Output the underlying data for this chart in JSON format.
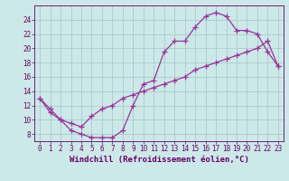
{
  "xlabel": "Windchill (Refroidissement éolien,°C)",
  "bg_color": "#cce8e8",
  "grid_color": "#aacccc",
  "line_color": "#993399",
  "curve1_x": [
    0,
    1,
    2,
    3,
    4,
    5,
    6,
    7,
    8,
    9,
    10,
    11,
    12,
    13,
    14,
    15,
    16,
    17,
    18,
    19,
    20,
    21,
    22,
    23
  ],
  "curve1_y": [
    13.0,
    11.5,
    10.0,
    8.5,
    8.0,
    7.5,
    7.5,
    7.5,
    8.5,
    12.0,
    15.0,
    15.5,
    19.5,
    21.0,
    21.0,
    23.0,
    24.5,
    25.0,
    24.5,
    22.5,
    22.5,
    22.0,
    19.5,
    17.5
  ],
  "curve2_x": [
    0,
    1,
    2,
    3,
    4,
    5,
    6,
    7,
    8,
    9,
    10,
    11,
    12,
    13,
    14,
    15,
    16,
    17,
    18,
    19,
    20,
    21,
    22,
    23
  ],
  "curve2_y": [
    13.0,
    11.0,
    10.0,
    9.5,
    9.0,
    10.5,
    11.5,
    12.0,
    13.0,
    13.5,
    14.0,
    14.5,
    15.0,
    15.5,
    16.0,
    17.0,
    17.5,
    18.0,
    18.5,
    19.0,
    19.5,
    20.0,
    21.0,
    17.5
  ],
  "xlim": [
    -0.5,
    23.5
  ],
  "ylim": [
    7.0,
    26.0
  ],
  "yticks": [
    8,
    10,
    12,
    14,
    16,
    18,
    20,
    22,
    24
  ],
  "xticks": [
    0,
    1,
    2,
    3,
    4,
    5,
    6,
    7,
    8,
    9,
    10,
    11,
    12,
    13,
    14,
    15,
    16,
    17,
    18,
    19,
    20,
    21,
    22,
    23
  ],
  "marker": "+",
  "markersize": 4,
  "linewidth": 0.9,
  "font_color": "#660066",
  "tick_fontsize": 5.5,
  "label_fontsize": 6.5
}
